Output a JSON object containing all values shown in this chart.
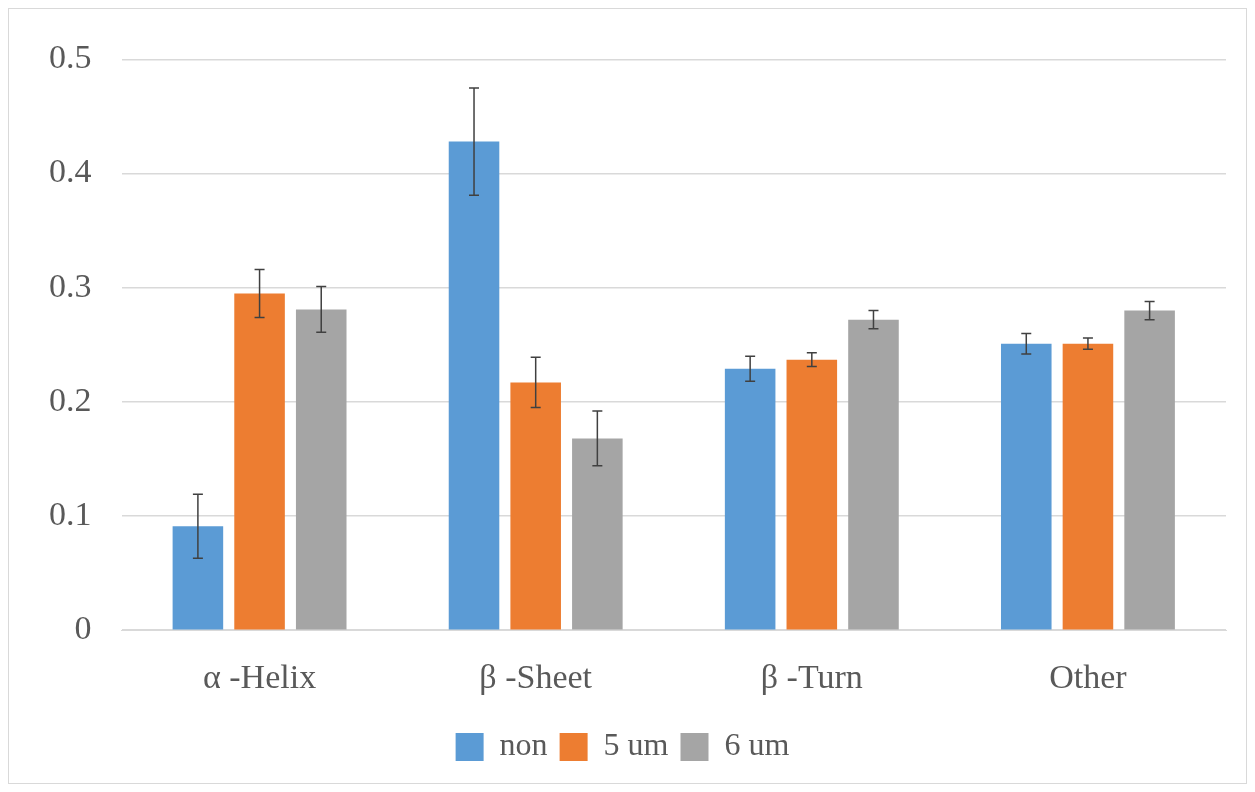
{
  "chart_data": {
    "type": "bar",
    "categories": [
      "α -Helix",
      "β -Sheet",
      "β -Turn",
      "Other"
    ],
    "series": [
      {
        "name": "non",
        "color": "#5b9bd5",
        "values": [
          0.091,
          0.428,
          0.229,
          0.251
        ],
        "errors": [
          0.028,
          0.047,
          0.011,
          0.009
        ]
      },
      {
        "name": "5 um",
        "color": "#ed7d31",
        "values": [
          0.295,
          0.217,
          0.237,
          0.251
        ],
        "errors": [
          0.021,
          0.022,
          0.006,
          0.005
        ]
      },
      {
        "name": "6 um",
        "color": "#a5a5a5",
        "values": [
          0.281,
          0.168,
          0.272,
          0.28
        ],
        "errors": [
          0.02,
          0.024,
          0.008,
          0.008
        ]
      }
    ],
    "ylim": [
      0,
      0.5
    ],
    "yticks": [
      0,
      0.1,
      0.2,
      0.3,
      0.4,
      0.5
    ],
    "grid": "y",
    "legend": "bottom"
  }
}
